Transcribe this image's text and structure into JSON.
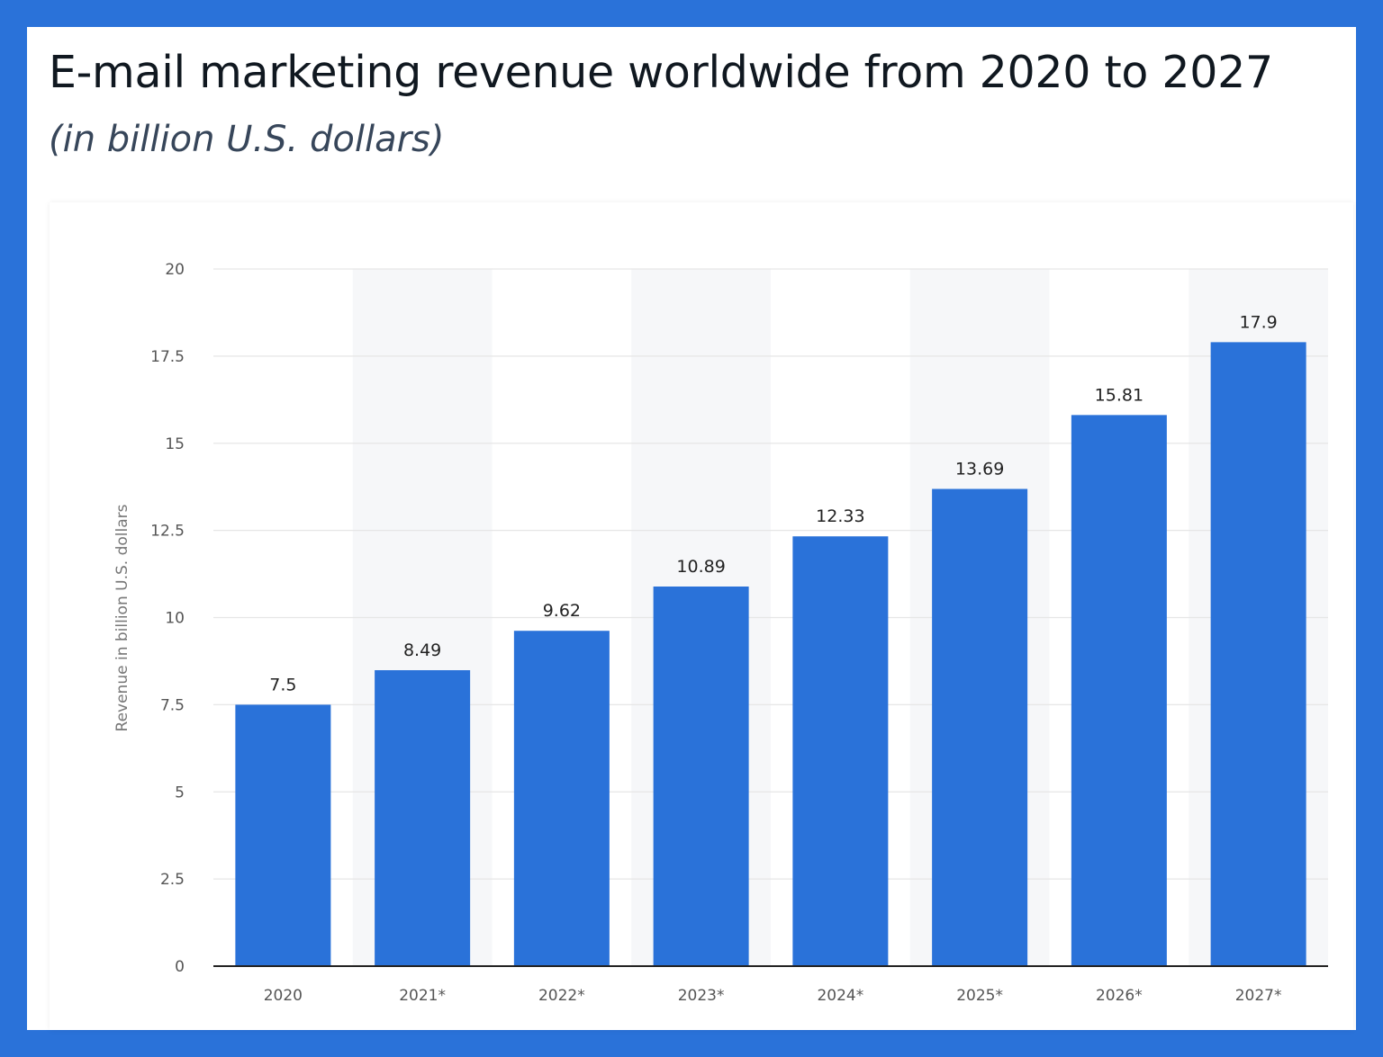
{
  "chart_data": {
    "type": "bar",
    "title": "E-mail marketing revenue worldwide from 2020 to 2027",
    "subtitle": "(in billion U.S. dollars)",
    "xlabel": "",
    "ylabel": "Revenue in billion U.S. dollars",
    "categories": [
      "2020",
      "2021*",
      "2022*",
      "2023*",
      "2024*",
      "2025*",
      "2026*",
      "2027*"
    ],
    "values": [
      7.5,
      8.49,
      9.62,
      10.89,
      12.33,
      13.69,
      15.81,
      17.9
    ],
    "value_labels": [
      "7.5",
      "8.49",
      "9.62",
      "10.89",
      "12.33",
      "13.69",
      "15.81",
      "17.9"
    ],
    "ylim": [
      0,
      20
    ],
    "yticks": [
      0,
      2.5,
      5,
      7.5,
      10,
      12.5,
      15,
      17.5,
      20
    ],
    "grid": true,
    "colors": {
      "bar": "#2a72d9",
      "grid": "#e6e6e6",
      "band": "#f6f7f9",
      "axis": "#222222"
    }
  }
}
